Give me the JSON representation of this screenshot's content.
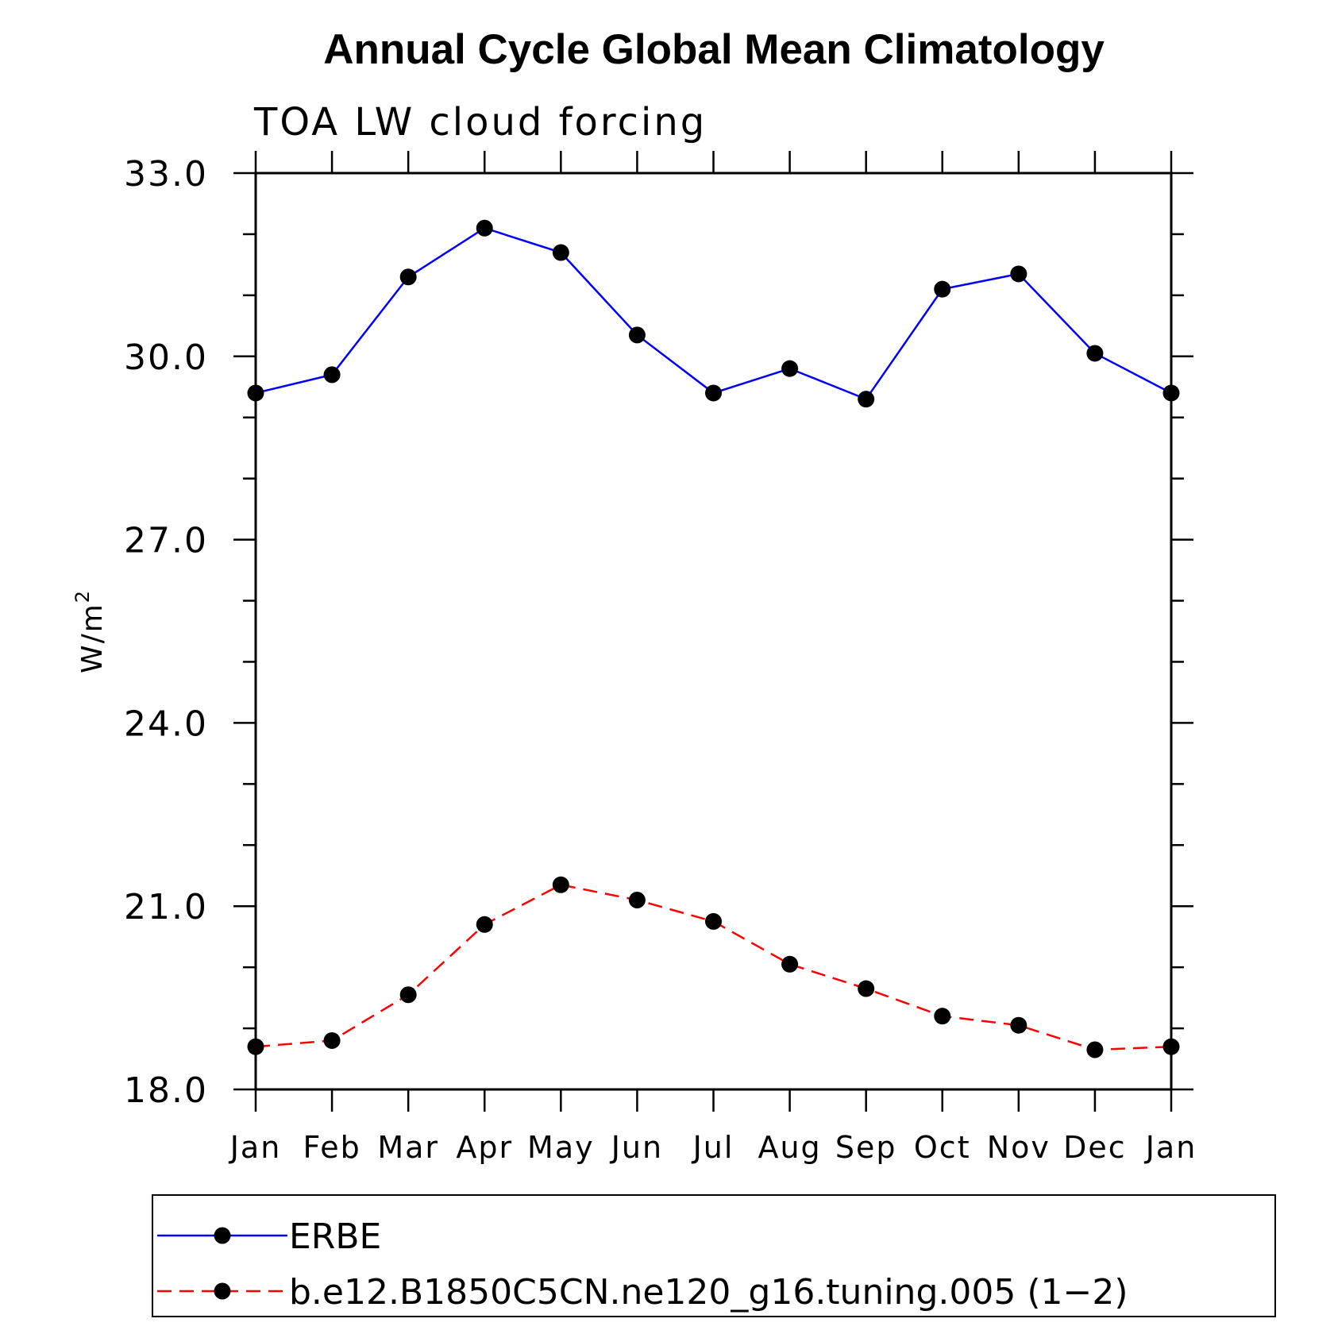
{
  "chart_data": {
    "type": "line",
    "title": "Annual Cycle Global Mean Climatology",
    "subtitle": "TOA LW cloud forcing",
    "ylabel": "W/m",
    "ylabel_superscript": "2",
    "ylim": [
      18.0,
      33.0
    ],
    "yticks": [
      "18.0",
      "21.0",
      "24.0",
      "27.0",
      "30.0",
      "33.0"
    ],
    "ytick_values": [
      18,
      21,
      24,
      27,
      30,
      33
    ],
    "categories": [
      "Jan",
      "Feb",
      "Mar",
      "Apr",
      "May",
      "Jun",
      "Jul",
      "Aug",
      "Sep",
      "Oct",
      "Nov",
      "Dec",
      "Jan"
    ],
    "series": [
      {
        "name": "ERBE",
        "color": "#0000ff",
        "dash": "solid",
        "values": [
          29.4,
          29.7,
          31.3,
          32.1,
          31.7,
          30.35,
          29.4,
          29.8,
          29.3,
          31.1,
          31.35,
          30.05,
          29.4
        ]
      },
      {
        "name": "b.e12.B1850C5CN.ne120_g16.tuning.005 (1−2)",
        "color": "#ff0000",
        "dash": "dashed",
        "values": [
          18.7,
          18.8,
          19.55,
          20.7,
          21.35,
          21.1,
          20.75,
          20.05,
          19.65,
          19.2,
          19.05,
          18.65,
          18.7
        ]
      }
    ],
    "marker_color": "#000000",
    "legend_position": "bottom"
  }
}
